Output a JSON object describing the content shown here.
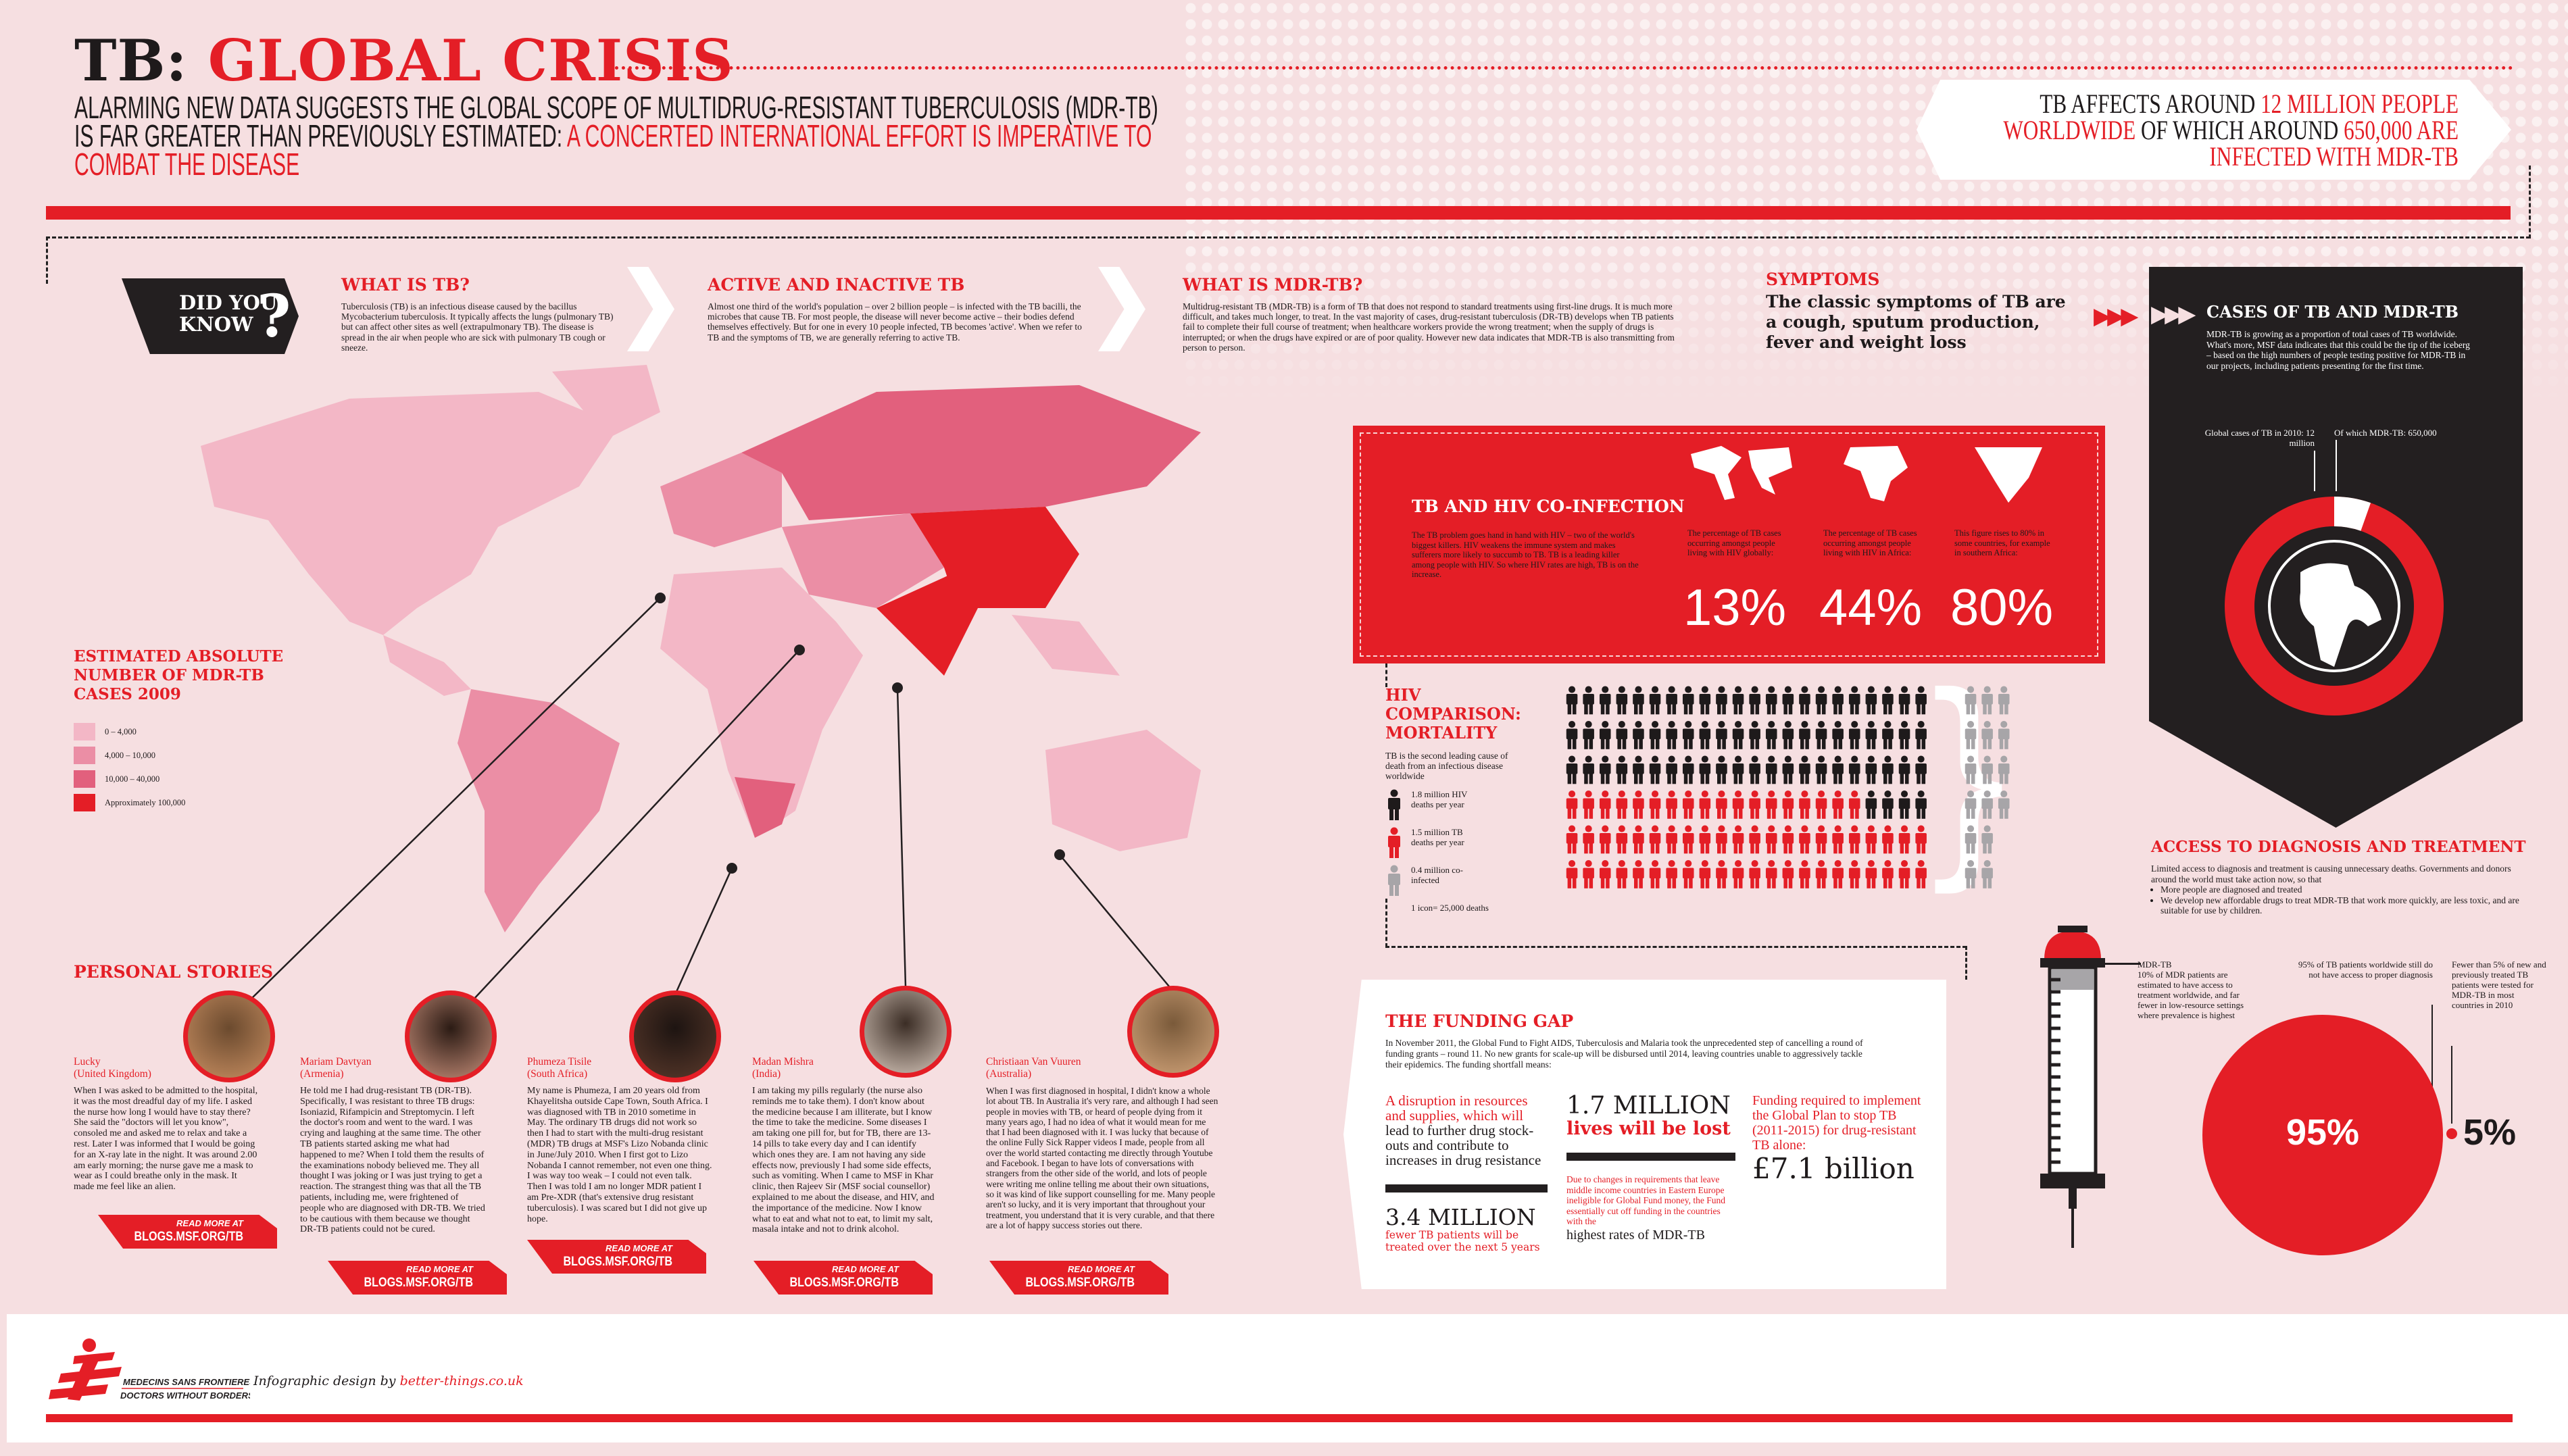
{
  "colors": {
    "accent": "#e41e26",
    "dark": "#231f20",
    "background": "#f6dfe1",
    "legend": [
      "#f3b7c6",
      "#eb8ea5",
      "#e2607d",
      "#e41e26"
    ]
  },
  "header": {
    "title_black": "TB:",
    "title_red": "GLOBAL CRISIS",
    "subtitle_black": "Alarming new data suggests the global scope of multidrug-resistant tuberculosis (MDR-TB) is far greater than previously estimated:",
    "subtitle_red": "a concerted international effort is imperative to combat the disease",
    "banner": {
      "p1": "TB affects around ",
      "p2": "12 million people worldwide",
      "p3": " of which around ",
      "p4": "650,000 are infected with MDR-TB"
    }
  },
  "did_you_know": {
    "line1": "DID YOU",
    "line2": "KNOW",
    "mark": "?"
  },
  "facts": [
    {
      "title": "WHAT IS TB?",
      "text": "Tuberculosis (TB) is an infectious disease caused by the bacillus Mycobacterium tuberculosis. It typically affects the lungs (pulmonary TB) but can affect other sites as well (extrapulmonary TB). The disease is spread in the air when people who are sick with pulmonary TB cough or sneeze."
    },
    {
      "title": "ACTIVE AND INACTIVE TB",
      "text": "Almost one third of the world's population – over 2 billion people – is infected with the TB bacilli, the microbes that cause TB. For most people, the disease will never become active – their bodies defend themselves effectively. But for one in every 10 people infected, TB becomes 'active'. When we refer to TB and the symptoms of TB, we are generally referring to active TB."
    },
    {
      "title": "WHAT IS MDR-TB?",
      "text": "Multidrug-resistant TB (MDR-TB) is a form of TB that does not respond to standard treatments using first-line drugs. It is much more difficult, and takes much longer, to treat. In the vast majority of cases, drug-resistant tuberculosis (DR-TB) develops when TB patients fail to complete their full course of treatment; when healthcare workers provide the wrong treatment; when the supply of drugs is interrupted; or when the drugs have expired or are of poor quality. However new data indicates that MDR-TB is also transmitting from person to person."
    }
  ],
  "symptoms": {
    "title": "SYMPTOMS",
    "text": "The classic symptoms of TB are a cough, sputum production, fever and weight loss"
  },
  "cases": {
    "title": "CASES OF TB AND MDR-TB",
    "text": "MDR-TB is growing as a proportion of total cases of TB worldwide. What's more, MSF data indicates that this could be the tip of the iceberg – based on the high numbers of people testing positive for MDR-TB in our projects, including patients presenting for the first time.",
    "label_total": "Global cases of TB in 2010: 12 million",
    "label_mdr": "Of which MDR-TB: 650,000",
    "total": 12000000,
    "mdr": 650000
  },
  "coinfection": {
    "title": "TB AND HIV CO-INFECTION",
    "text": "The TB problem goes hand in hand with HIV – two of the world's biggest killers. HIV weakens the immune system and makes sufferers more likely to succumb to TB. TB is a leading killer among people with HIV. So where HIV rates are high, TB is on the increase.",
    "stats": [
      {
        "icon": "world-map-icon",
        "text": "The percentage of TB cases occurring amongst people living with HIV globally:",
        "value": "13%"
      },
      {
        "icon": "africa-icon",
        "text": "The percentage of TB cases occurring amongst people living with HIV in Africa:",
        "value": "44%"
      },
      {
        "icon": "southern-africa-icon",
        "text": "This figure rises to 80% in some countries, for example in southern Africa:",
        "value": "80%"
      }
    ]
  },
  "mortality": {
    "title": "HIV COMPARISON: MORTALITY",
    "text": "TB is the second leading cause of death from an infectious disease worldwide",
    "legend": [
      {
        "color": "#1e1a1b",
        "text": "1.8 million HIV deaths per year"
      },
      {
        "color": "#e41e26",
        "text": "1.5 million TB deaths per year"
      },
      {
        "color": "#a7a5a8",
        "text": "0.4 million co-infected"
      }
    ],
    "scale": "1 icon= 25,000 deaths",
    "icon_counts": {
      "hiv": 70,
      "tb": 62,
      "coinfected": 16
    }
  },
  "map": {
    "title": "ESTIMATED ABSOLUTE NUMBER OF MDR-TB CASES 2009",
    "legend": [
      "0 – 4,000",
      "4,000 – 10,000",
      "10,000 – 40,000",
      "Approximately 100,000"
    ]
  },
  "stories": {
    "title": "PERSONAL STORIES",
    "read_more_a": "READ MORE  AT",
    "read_more_b": "BLOGS.MSF.ORG/TB",
    "items": [
      {
        "name": "Lucky",
        "country": "(United Kingdom)",
        "text": "When I was asked to be admitted to the hospital, it was the most dreadful day of my life. I asked the nurse how long I would have to stay there? She said the \"doctors will let you know\", consoled me and asked me to relax and take a rest. Later I was informed that I would be going for an X-ray late in the night. It was around 2.00 am early morning; the nurse gave me a mask to wear as I could breathe only in the mask. It made me feel like an alien."
      },
      {
        "name": "Mariam Davtyan",
        "country": "(Armenia)",
        "text": "He told me I had drug-resistant TB (DR-TB). Specifically, I was resistant to three TB drugs: Isoniazid, Rifampicin and Streptomycin. I left the doctor's room and went to the ward. I was crying and laughing at the same time. The other TB patients started asking me what had happened to me? When I told them the results of the examinations nobody believed me. They all thought I was joking or I was just trying to get a reaction. The strangest thing was that all the TB patients, including me, were frightened of people who are diagnosed with DR-TB. We tried to be cautious with them because we thought DR-TB patients could not be cured."
      },
      {
        "name": "Phumeza Tisile",
        "country": "(South Africa)",
        "text": "My name is Phumeza, I am 20 years old from Khayelitsha outside Cape Town, South Africa. I was diagnosed with TB in 2010 sometime in May. The ordinary TB drugs did not work so then I had to start with the multi-drug resistant (MDR) TB drugs at MSF's Lizo Nobanda clinic in June/July 2010. When I first got to Lizo Nobanda I cannot remember, not even one thing. I was way too weak – I could not even talk. Then I was told I am no longer MDR patient I am Pre-XDR (that's extensive drug resistant tuberculosis). I was scared but I did not give up hope."
      },
      {
        "name": "Madan Mishra",
        "country": "(India)",
        "text": "I am taking my pills regularly (the nurse also reminds me to take them). I don't know about the medicine because I am illiterate, but I know the time to take the medicine. Some diseases I am taking one pill for, but for TB, there are 13-14 pills to take every day and I can identify which ones they are. I am not having any side effects now, previously I had some side effects, such as vomiting. When I came to MSF in Khar clinic, then Rajeev Sir (MSF social counsellor) explained to me about the disease, and HIV, and the importance of the medicine. Now I know what to eat and what not to eat, to limit my salt, masala intake and not to drink alcohol."
      },
      {
        "name": "Christiaan Van Vuuren",
        "country": "(Australia)",
        "text": "When I was first diagnosed in hospital, I didn't know a whole lot about TB. In Australia it's very rare, and although I had seen people in movies with TB, or heard of people dying from it many years ago, I had no idea of what it would mean for me that I had been diagnosed with it. I was lucky that because of the online Fully Sick Rapper videos I made, people from all over the world started contacting me directly through Youtube and Facebook. I began to have lots of conversations with strangers from the other side of the world, and lots of people were writing me online telling me about their own situations, so it was kind of like support counselling for me. Many people aren't so lucky, and it is very important that throughout your treatment, you understand that it is very curable, and that there are a lot of happy success stories out there."
      }
    ]
  },
  "funding": {
    "title": "THE FUNDING GAP",
    "text": "In November 2011, the Global Fund to Fight AIDS, Tuberculosis and Malaria took the unprecedented step of cancelling a round of funding grants – round 11. No new grants for scale-up will be disbursed until 2014, leaving countries unable to aggressively tackle their epidemics. The funding shortfall means:",
    "c1_red": "A disruption in resources and supplies, which will",
    "c1_black": "lead to further drug stock-outs and contribute to increases in drug resistance",
    "c1_big": "3.4 MILLION",
    "c1_sub": "fewer TB patients will be treated over the next 5 years",
    "c2_big": "1.7 MILLION",
    "c2_sub": "lives will be lost",
    "c2_red": "Due to changes in requirements that leave middle income countries in Eastern Europe ineligible for Global Fund money, the Fund essentially cut off funding in the countries with the",
    "c2_black": "highest rates of MDR-TB",
    "c3_red": "Funding required to implement the Global Plan to stop TB (2011-2015) for drug-resistant TB alone:",
    "c3_big": "£7.1 billion"
  },
  "access": {
    "title": "ACCESS TO DIAGNOSIS AND TREATMENT",
    "text": "Limited access to diagnosis and treatment is causing unnecessary deaths. Governments and donors around the world must take action now, so that",
    "bullets": [
      "More people are diagnosed and treated",
      "We develop new affordable drugs to treat MDR-TB that work more quickly, are less toxic, and are suitable for use by children."
    ],
    "syringe_title": "MDR-TB",
    "syringe_text": "10% of MDR patients are estimated to have access to treatment worldwide, and far fewer in low-resource settings where prevalence is highest",
    "syringe_fill_percent": 10,
    "diag_text": "95% of TB patients  worldwide still do not have access to proper diagnosis",
    "diag_value": "95%",
    "tested_text": "Fewer than 5% of new and previously treated TB patients were tested for MDR-TB in most countries in 2010",
    "tested_value": "5%"
  },
  "footer": {
    "logo_line1": "MEDECINS SANS FRONTIERES",
    "logo_line2": "DOCTORS WITHOUT BORDERS",
    "credit": "Infographic design by ",
    "credit_link": "better-things.co.uk"
  }
}
